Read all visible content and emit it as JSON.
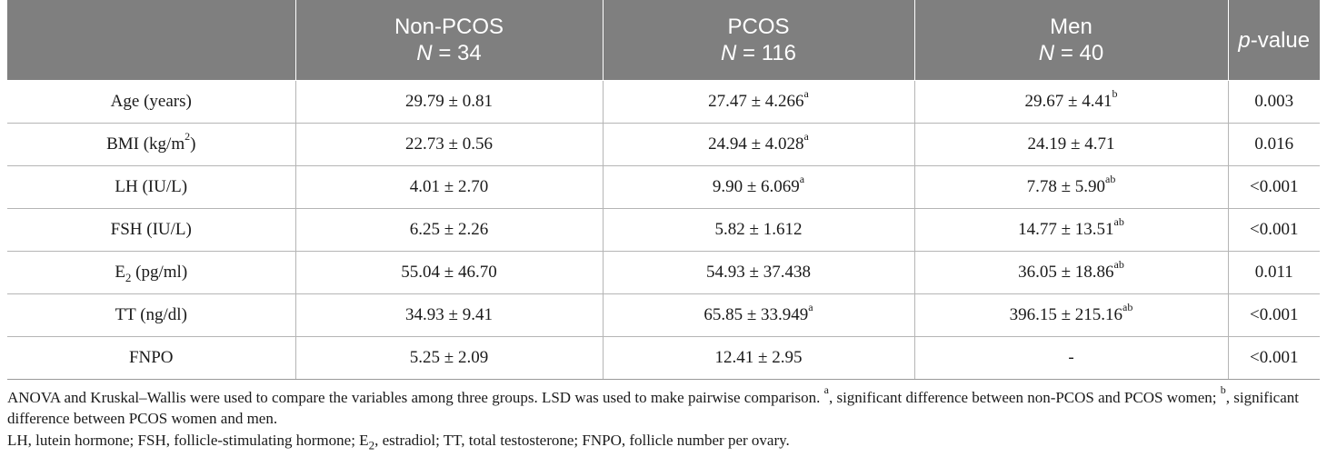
{
  "header": {
    "col1_title": "Non-PCOS",
    "col1_n_label": "N",
    "col1_n_value": "= 34",
    "col2_title": "PCOS",
    "col2_n_label": "N",
    "col2_n_value": "= 116",
    "col3_title": "Men",
    "col3_n_label": "N",
    "col3_n_value": "= 40",
    "col4_title_italic": "p",
    "col4_title_rest": "-value"
  },
  "rows": [
    {
      "label": "Age (years)",
      "label_suffix": "",
      "non_pcos": "29.79 ± 0.81",
      "non_pcos_sup": "",
      "pcos": "27.47 ± 4.266",
      "pcos_sup": "a",
      "men": "29.67 ± 4.41",
      "men_sup": "b",
      "p": "0.003"
    },
    {
      "label": "BMI (kg/m",
      "label_sup": "2",
      "label_suffix": ")",
      "non_pcos": "22.73 ± 0.56",
      "non_pcos_sup": "",
      "pcos": "24.94 ± 4.028",
      "pcos_sup": "a",
      "men": "24.19 ± 4.71",
      "men_sup": "",
      "p": "0.016"
    },
    {
      "label": "LH (IU/L)",
      "label_suffix": "",
      "non_pcos": "4.01 ± 2.70",
      "non_pcos_sup": "",
      "pcos": "9.90 ± 6.069",
      "pcos_sup": "a",
      "men": "7.78 ± 5.90",
      "men_sup": "ab",
      "p": "<0.001"
    },
    {
      "label": "FSH (IU/L)",
      "label_suffix": "",
      "non_pcos": "6.25 ± 2.26",
      "non_pcos_sup": "",
      "pcos": "5.82 ± 1.612",
      "pcos_sup": "",
      "men": "14.77 ± 13.51",
      "men_sup": "ab",
      "p": "<0.001"
    },
    {
      "label": "E",
      "label_sub": "2",
      "label_suffix": " (pg/ml)",
      "non_pcos": "55.04 ± 46.70",
      "non_pcos_sup": "",
      "pcos": "54.93 ± 37.438",
      "pcos_sup": "",
      "men": "36.05 ± 18.86",
      "men_sup": "ab",
      "p": "0.011"
    },
    {
      "label": "TT (ng/dl)",
      "label_suffix": "",
      "non_pcos": "34.93 ± 9.41",
      "non_pcos_sup": "",
      "pcos": "65.85 ± 33.949",
      "pcos_sup": "a",
      "men": "396.15 ± 215.16",
      "men_sup": "ab",
      "p": "<0.001"
    },
    {
      "label": "FNPO",
      "label_suffix": "",
      "non_pcos": "5.25 ± 2.09",
      "non_pcos_sup": "",
      "pcos": "12.41 ± 2.95",
      "pcos_sup": "",
      "men": "-",
      "men_sup": "",
      "p": "<0.001"
    }
  ],
  "footnotes": {
    "note1_part1": "ANOVA and Kruskal–Wallis were used to compare the variables among three groups. LSD was used to make pairwise comparison. ",
    "note1_sup_a": "a",
    "note1_part2": ", significant difference between non-PCOS and PCOS women; ",
    "note1_sup_b": "b",
    "note1_part3": ", significant difference between PCOS women and men.",
    "note2_part1": "LH, lutein hormone; FSH, follicle-stimulating hormone; E",
    "note2_sub": "2",
    "note2_part2": ", estradiol; TT, total testosterone; FNPO, follicle number per ovary."
  }
}
